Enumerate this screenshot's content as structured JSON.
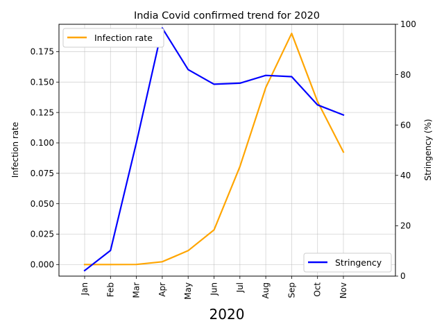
{
  "chart_data": {
    "type": "line",
    "title": "India Covid confirmed trend for 2020",
    "xlabel": "2020",
    "categories": [
      "Jan",
      "Feb",
      "Mar",
      "Apr",
      "May",
      "Jun",
      "Jul",
      "Aug",
      "Sep",
      "Oct",
      "Nov"
    ],
    "grid": true,
    "axes": {
      "left": {
        "label": "Infection rate",
        "range": [
          -0.0095,
          0.1975
        ],
        "ticks": [
          "0.000",
          "0.025",
          "0.050",
          "0.075",
          "0.100",
          "0.125",
          "0.150",
          "0.175"
        ],
        "tick_values": [
          0,
          0.025,
          0.05,
          0.075,
          0.1,
          0.125,
          0.15,
          0.175
        ]
      },
      "right": {
        "label": "Stringency (%)",
        "range": [
          0,
          100
        ],
        "ticks": [
          "0",
          "20",
          "40",
          "60",
          "80",
          "100"
        ],
        "tick_values": [
          0,
          20,
          40,
          60,
          80,
          100
        ]
      }
    },
    "series": [
      {
        "name": "Infection rate",
        "axis": "left",
        "color": "#FFA500",
        "legend": "upper-left",
        "values": [
          0.0,
          0.0,
          0.0001,
          0.0023,
          0.0114,
          0.0285,
          0.0805,
          0.1455,
          0.19,
          0.134,
          0.0925
        ]
      },
      {
        "name": "Stringency",
        "axis": "right",
        "color": "#0000FF",
        "legend": "lower-right",
        "values": [
          2.2,
          10.2,
          53.0,
          98.5,
          82.0,
          76.2,
          76.6,
          79.7,
          79.2,
          68.0,
          64.0
        ]
      }
    ]
  }
}
